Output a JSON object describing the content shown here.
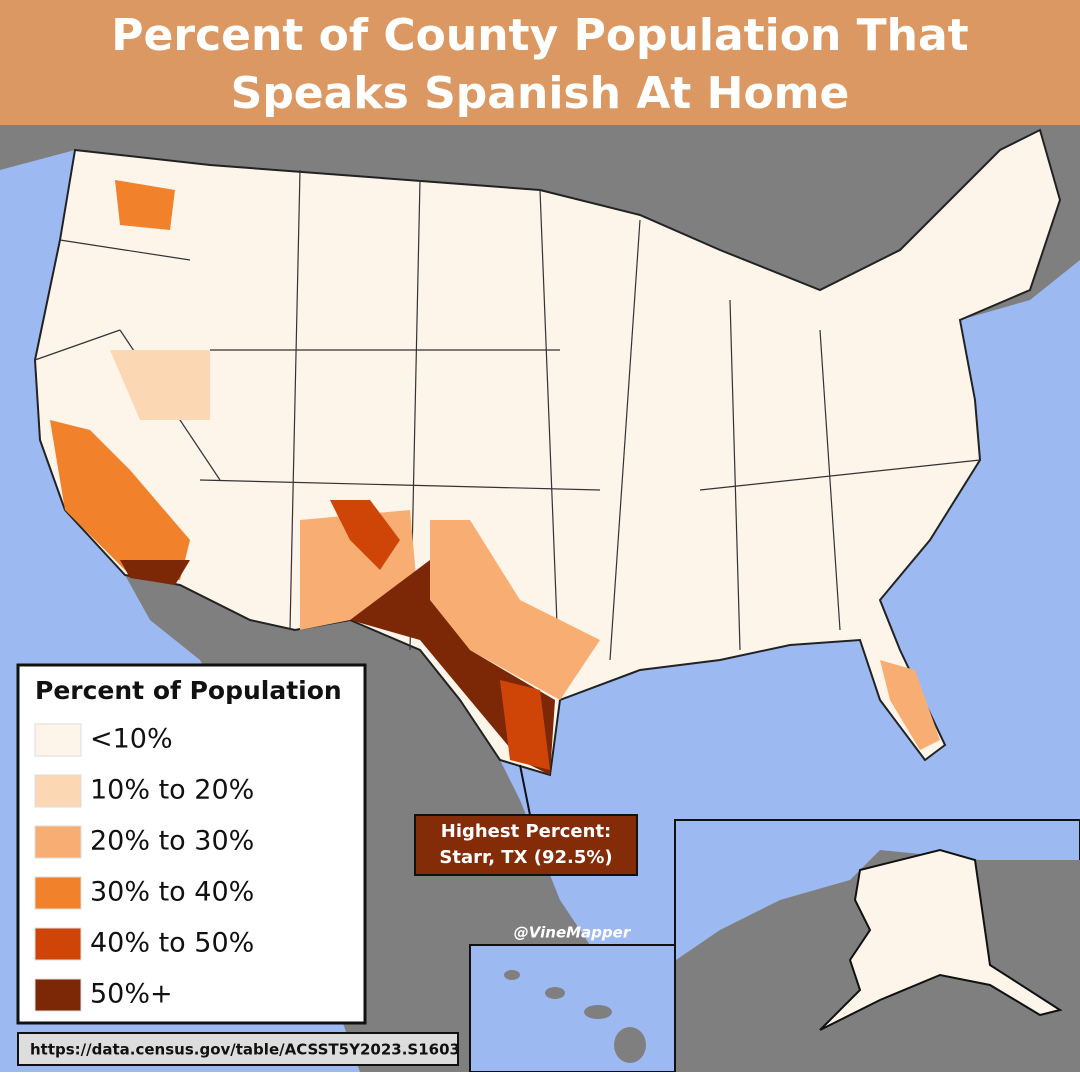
{
  "header": {
    "title_lines": [
      "Percent of County Population That",
      "Speaks Spanish At Home"
    ]
  },
  "legend": {
    "title": "Percent of Population",
    "items": [
      {
        "label": "<10%",
        "color": "#fdf4ea"
      },
      {
        "label": "10% to 20%",
        "color": "#fbd7b3"
      },
      {
        "label": "20% to 30%",
        "color": "#f8ae73"
      },
      {
        "label": "30% to 40%",
        "color": "#f2812c"
      },
      {
        "label": "40% to 50%",
        "color": "#cf4508"
      },
      {
        "label": "50%+",
        "color": "#7c2706"
      }
    ]
  },
  "annotation": {
    "lines": [
      "Highest Percent:",
      "Starr, TX (92.5%)"
    ]
  },
  "credit": "@VineMapper",
  "source": "https://data.census.gov/table/ACSST5Y2023.S1603"
}
